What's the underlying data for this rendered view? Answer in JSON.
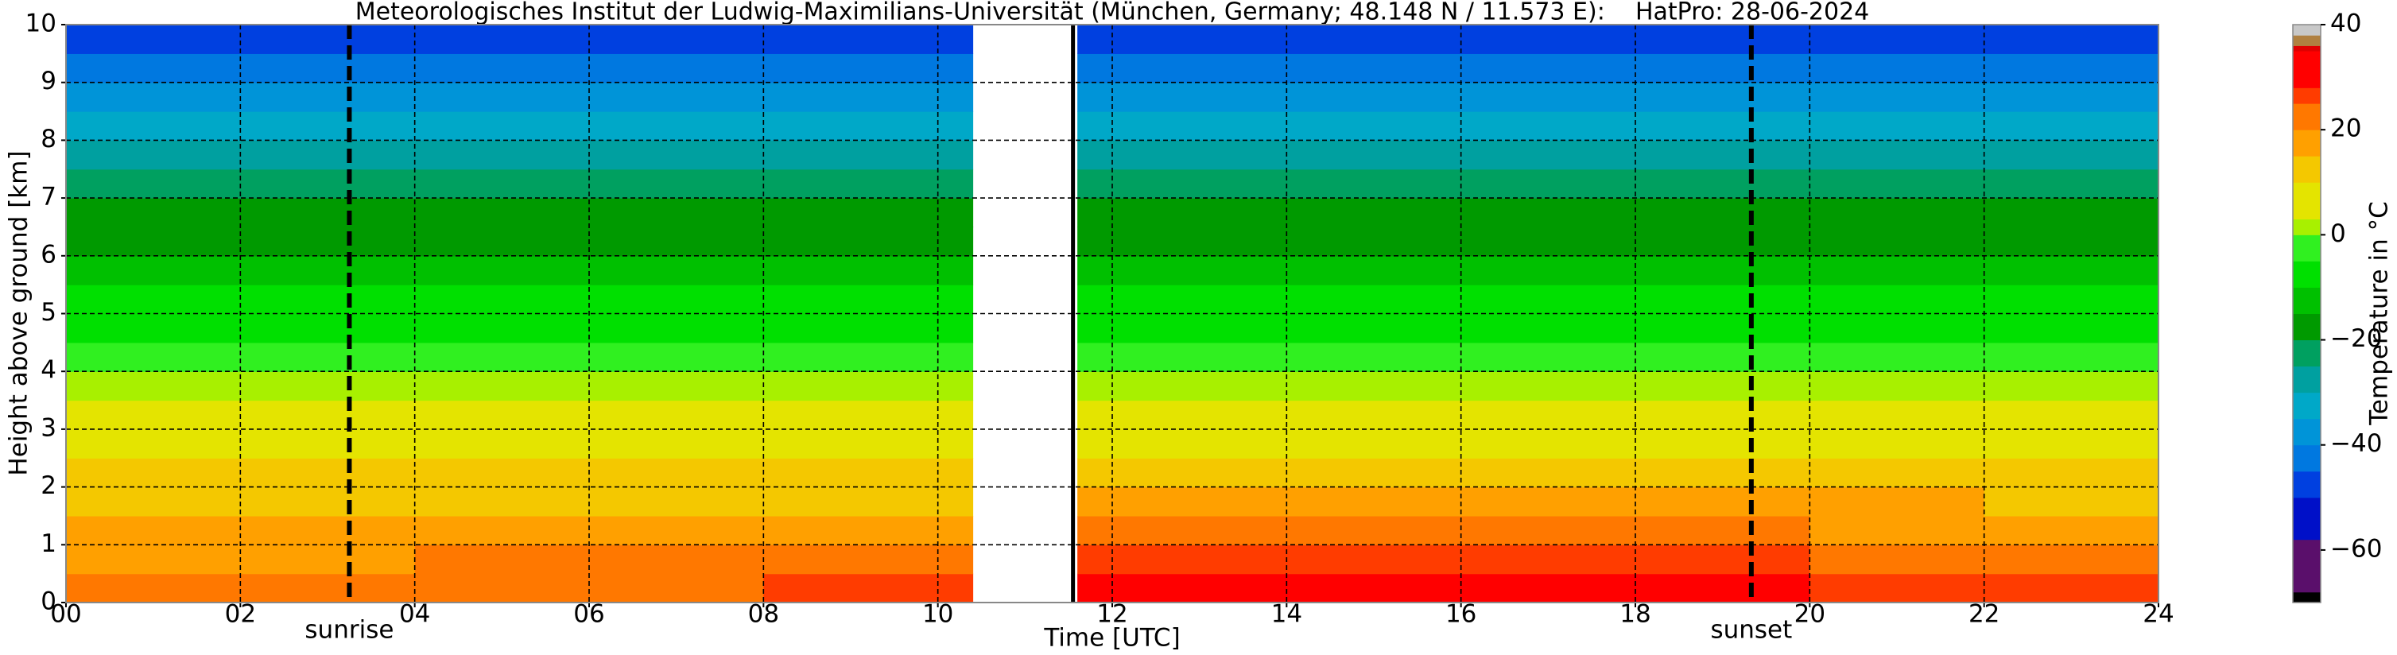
{
  "chart_data": {
    "type": "heatmap",
    "title": "Meteorologisches Institut der Ludwig-Maximilians-Universität (München, Germany; 48.148 N / 11.573 E):    HatPro: 28-06-2024",
    "x_label": "Time [UTC]",
    "y_label": "Height above ground [km]",
    "colorbar_label": "Temperature in °C",
    "xlim": [
      0,
      24
    ],
    "ylim": [
      0,
      10
    ],
    "xticks": [
      {
        "value": 0,
        "label": "00"
      },
      {
        "value": 2,
        "label": "02"
      },
      {
        "value": 4,
        "label": "04"
      },
      {
        "value": 6,
        "label": "06"
      },
      {
        "value": 8,
        "label": "08"
      },
      10,
      12,
      14,
      16,
      18,
      20,
      22,
      24
    ],
    "yticks": [
      0,
      1,
      2,
      3,
      4,
      5,
      6,
      7,
      8,
      9,
      10
    ],
    "grid": true,
    "x_edges": [
      0,
      2,
      4,
      6,
      8,
      10,
      10.4,
      11.6,
      12,
      14,
      16,
      18,
      20,
      22,
      24
    ],
    "y_edges": [
      0,
      0.5,
      1,
      1.5,
      2,
      2.5,
      3,
      3.5,
      4,
      4.5,
      5,
      5.5,
      6,
      6.5,
      7,
      7.5,
      8,
      8.5,
      9,
      9.5,
      10
    ],
    "values": [
      [
        22,
        21,
        23,
        24,
        25,
        26,
        null,
        29,
        30,
        30,
        30,
        29,
        27,
        25
      ],
      [
        19,
        19,
        20,
        21,
        22,
        23,
        null,
        25,
        26,
        26,
        26,
        25,
        24,
        22
      ],
      [
        16,
        16,
        16,
        17,
        17,
        18,
        null,
        20,
        20,
        21,
        21,
        20,
        19,
        18
      ],
      [
        13,
        13,
        13,
        14,
        14,
        14,
        null,
        16,
        16,
        16,
        16,
        16,
        15,
        14
      ],
      [
        10,
        10,
        10,
        10,
        11,
        11,
        null,
        12,
        12,
        12,
        12,
        12,
        11,
        11
      ],
      [
        7,
        7,
        7,
        7,
        8,
        8,
        null,
        8,
        8,
        8,
        8,
        8,
        8,
        8
      ],
      [
        4,
        4,
        4,
        4,
        5,
        5,
        null,
        5,
        5,
        5,
        5,
        5,
        5,
        5
      ],
      [
        1,
        1,
        1,
        1,
        2,
        2,
        null,
        2,
        2,
        2,
        2,
        2,
        2,
        2
      ],
      [
        -3,
        -3,
        -3,
        -3,
        -2,
        -2,
        null,
        -2,
        -2,
        -2,
        -2,
        -2,
        -2,
        -2
      ],
      [
        -6,
        -6,
        -6,
        -6,
        -6,
        -6,
        null,
        -6,
        -6,
        -6,
        -6,
        -6,
        -6,
        -6
      ],
      [
        -9,
        -9,
        -9,
        -9,
        -9,
        -9,
        null,
        -9,
        -9,
        -9,
        -9,
        -9,
        -9,
        -9
      ],
      [
        -13,
        -13,
        -13,
        -13,
        -13,
        -13,
        null,
        -13,
        -13,
        -13,
        -13,
        -13,
        -13,
        -13
      ],
      [
        -16,
        -16,
        -16,
        -16,
        -16,
        -16,
        null,
        -16,
        -16,
        -16,
        -16,
        -16,
        -16,
        -16
      ],
      [
        -19,
        -19,
        -19,
        -19,
        -19,
        -19,
        null,
        -19,
        -19,
        -19,
        -19,
        -19,
        -19,
        -19
      ],
      [
        -23,
        -23,
        -23,
        -23,
        -23,
        -23,
        null,
        -23,
        -23,
        -23,
        -23,
        -23,
        -23,
        -23
      ],
      [
        -28,
        -28,
        -28,
        -28,
        -28,
        -28,
        null,
        -28,
        -28,
        -28,
        -28,
        -28,
        -28,
        -28
      ],
      [
        -32,
        -32,
        -32,
        -32,
        -32,
        -32,
        null,
        -32,
        -32,
        -32,
        -32,
        -32,
        -32,
        -32
      ],
      [
        -36,
        -36,
        -36,
        -36,
        -36,
        -36,
        null,
        -36,
        -36,
        -36,
        -36,
        -36,
        -36,
        -36
      ],
      [
        -41,
        -41,
        -41,
        -41,
        -41,
        -41,
        null,
        -41,
        -41,
        -41,
        -41,
        -41,
        -41,
        -41
      ],
      [
        -47,
        -47,
        -47,
        -47,
        -47,
        -47,
        null,
        -47,
        -47,
        -47,
        -47,
        -47,
        -47,
        -47
      ]
    ],
    "colorbar_lim": [
      -70,
      40
    ],
    "colorbar_ticks": [
      {
        "value": -60,
        "label": "−60"
      },
      {
        "value": -40,
        "label": "−40"
      },
      {
        "value": -20,
        "label": "−20"
      },
      0,
      20,
      40
    ],
    "colormap": [
      {
        "value": -70,
        "color": "#000000"
      },
      {
        "value": -68,
        "color": "#5a0f6b"
      },
      {
        "value": -58,
        "color": "#0010c8"
      },
      {
        "value": -50,
        "color": "#0040e0"
      },
      {
        "value": -45,
        "color": "#0078e0"
      },
      {
        "value": -40,
        "color": "#0094d8"
      },
      {
        "value": -35,
        "color": "#00a8c8"
      },
      {
        "value": -30,
        "color": "#00a0a0"
      },
      {
        "value": -25,
        "color": "#00a060"
      },
      {
        "value": -20,
        "color": "#009a00"
      },
      {
        "value": -15,
        "color": "#00c000"
      },
      {
        "value": -10,
        "color": "#00e000"
      },
      {
        "value": -5,
        "color": "#30f020"
      },
      {
        "value": 0,
        "color": "#a8f000"
      },
      {
        "value": 3,
        "color": "#e4e400"
      },
      {
        "value": 10,
        "color": "#f4c800"
      },
      {
        "value": 15,
        "color": "#ffa000"
      },
      {
        "value": 20,
        "color": "#ff7800"
      },
      {
        "value": 25,
        "color": "#ff3c00"
      },
      {
        "value": 28,
        "color": "#ff0000"
      },
      {
        "value": 35,
        "color": "#e00000"
      },
      {
        "value": 36,
        "color": "#b08040"
      },
      {
        "value": 38,
        "color": "#c8c8c8"
      }
    ],
    "gap_line_x": 11.55,
    "annotations": [
      {
        "x": 3.25,
        "label": "sunrise"
      },
      {
        "x": 19.33,
        "label": "sunset"
      }
    ]
  }
}
